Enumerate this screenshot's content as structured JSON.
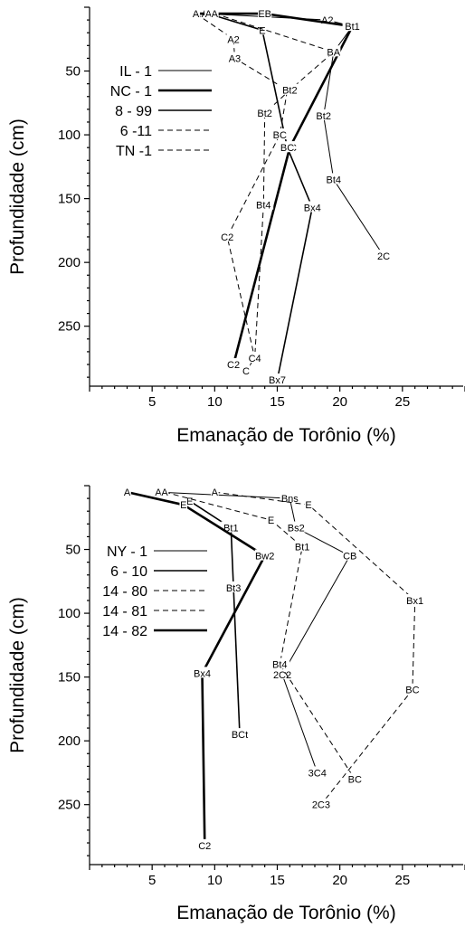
{
  "chart_data": [
    {
      "type": "line",
      "xlabel": "Emanação de Torônio (%)",
      "ylabel": "Profundidade (cm)",
      "xlim": [
        0,
        30
      ],
      "ylim": [
        0,
        297
      ],
      "xticks": [
        "5",
        "10",
        "15",
        "20",
        "25"
      ],
      "yticks": [
        "50",
        "100",
        "150",
        "200",
        "250"
      ],
      "series": [
        {
          "name": "IL - 1",
          "style": "thin",
          "points": [
            {
              "x": 9.2,
              "y": 5,
              "label": "A"
            },
            {
              "x": 19,
              "y": 10,
              "label": "A2"
            },
            {
              "x": 21,
              "y": 15,
              "label": "Bt1"
            },
            {
              "x": 19.5,
              "y": 35,
              "label": "BA"
            },
            {
              "x": 18.7,
              "y": 85,
              "label": "Bt2"
            },
            {
              "x": 19.5,
              "y": 135,
              "label": "Bt4"
            },
            {
              "x": 23.5,
              "y": 195,
              "label": "2C"
            }
          ]
        },
        {
          "name": "NC - 1",
          "style": "thick",
          "points": [
            {
              "x": 8.5,
              "y": 5,
              "label": "A"
            },
            {
              "x": 14,
              "y": 5,
              "label": "EB"
            },
            {
              "x": 21,
              "y": 15,
              "label": "Bt1"
            },
            {
              "x": 16,
              "y": 110,
              "label": "BC"
            },
            {
              "x": 11.5,
              "y": 280,
              "label": "C2"
            }
          ]
        },
        {
          "name": "8 - 99",
          "style": "medium",
          "points": [
            {
              "x": 9.5,
              "y": 5,
              "label": "A"
            },
            {
              "x": 13.8,
              "y": 18,
              "label": "E"
            },
            {
              "x": 15.8,
              "y": 110,
              "label": "BC"
            },
            {
              "x": 17.8,
              "y": 157,
              "label": "Bx4"
            },
            {
              "x": 15,
              "y": 292,
              "label": "Bx7"
            }
          ]
        },
        {
          "name": "6 -11",
          "style": "dashed",
          "points": [
            {
              "x": 8.5,
              "y": 5,
              "label": "A"
            },
            {
              "x": 11.5,
              "y": 25,
              "label": "A2"
            },
            {
              "x": 11.6,
              "y": 40,
              "label": "A3"
            },
            {
              "x": 15.8,
              "y": 65,
              "label": "Bt2"
            },
            {
              "x": 15.2,
              "y": 100,
              "label": "BC"
            },
            {
              "x": 11,
              "y": 180,
              "label": "C2"
            },
            {
              "x": 13.2,
              "y": 275,
              "label": "C4"
            },
            {
              "x": 12.5,
              "y": 285,
              "label": "C"
            }
          ]
        },
        {
          "name": "TN -1",
          "style": "dashed",
          "points": [
            {
              "x": 10,
              "y": 5,
              "label": "A"
            },
            {
              "x": 19.5,
              "y": 35,
              "label": "BA"
            },
            {
              "x": 16,
              "y": 65,
              "label": "Bt2"
            },
            {
              "x": 14,
              "y": 83,
              "label": "Bt2"
            },
            {
              "x": 13.9,
              "y": 155,
              "label": "Bt4"
            },
            {
              "x": 13.2,
              "y": 275,
              "label": "C4"
            }
          ]
        }
      ]
    },
    {
      "type": "line",
      "xlabel": "Emanação de Torônio (%)",
      "ylabel": "Profundidade (cm)",
      "xlim": [
        0,
        30
      ],
      "ylim": [
        0,
        297
      ],
      "xticks": [
        "5",
        "10",
        "15",
        "20",
        "25"
      ],
      "yticks": [
        "50",
        "100",
        "150",
        "200",
        "250"
      ],
      "series": [
        {
          "name": "NY - 1",
          "style": "thin",
          "points": [
            {
              "x": 5.5,
              "y": 5,
              "label": "A"
            },
            {
              "x": 16,
              "y": 10,
              "label": "Bns"
            },
            {
              "x": 16.5,
              "y": 33,
              "label": "Bs2"
            },
            {
              "x": 20.8,
              "y": 55,
              "label": "CB"
            },
            {
              "x": 15.4,
              "y": 148,
              "label": "2C2"
            },
            {
              "x": 18.2,
              "y": 225,
              "label": "3C4"
            }
          ]
        },
        {
          "name": "6 - 10",
          "style": "medium",
          "points": [
            {
              "x": 8,
              "y": 12,
              "label": "E"
            },
            {
              "x": 11.3,
              "y": 33,
              "label": "Bt1"
            },
            {
              "x": 11.5,
              "y": 80,
              "label": "Bt3"
            },
            {
              "x": 12,
              "y": 195,
              "label": "BCt"
            }
          ]
        },
        {
          "name": "14 - 80",
          "style": "dashed",
          "points": [
            {
              "x": 6,
              "y": 5,
              "label": "A"
            },
            {
              "x": 14.5,
              "y": 27,
              "label": "E"
            },
            {
              "x": 17,
              "y": 48,
              "label": "Bt1"
            },
            {
              "x": 15.2,
              "y": 140,
              "label": "Bt4"
            },
            {
              "x": 21.2,
              "y": 230,
              "label": "BC"
            }
          ]
        },
        {
          "name": "14 - 81",
          "style": "dashed",
          "points": [
            {
              "x": 10,
              "y": 5,
              "label": "A"
            },
            {
              "x": 17.5,
              "y": 15,
              "label": "E"
            },
            {
              "x": 26,
              "y": 90,
              "label": "Bx1"
            },
            {
              "x": 25.8,
              "y": 160,
              "label": "BC"
            },
            {
              "x": 18.5,
              "y": 250,
              "label": "2C3"
            }
          ]
        },
        {
          "name": "14 - 82",
          "style": "thick",
          "points": [
            {
              "x": 3,
              "y": 5,
              "label": "A"
            },
            {
              "x": 7.5,
              "y": 15,
              "label": "E"
            },
            {
              "x": 14,
              "y": 55,
              "label": "Bw2"
            },
            {
              "x": 9,
              "y": 147,
              "label": "Bx4"
            },
            {
              "x": 9.2,
              "y": 282,
              "label": "C2"
            }
          ]
        }
      ]
    }
  ]
}
